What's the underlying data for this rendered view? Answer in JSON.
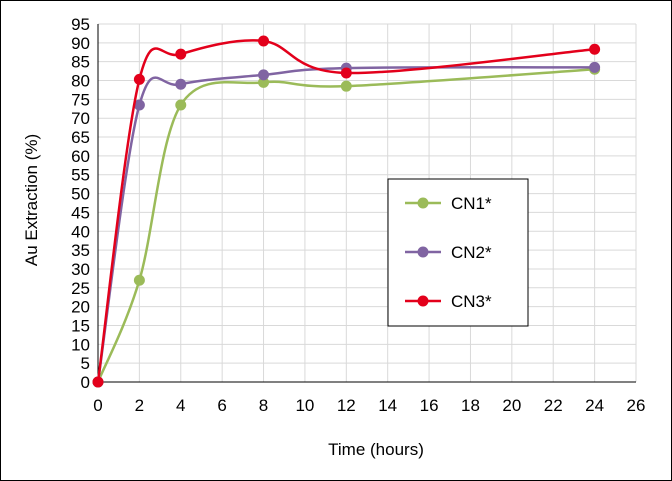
{
  "chart_data": {
    "type": "line",
    "title": "",
    "xlabel": "Time (hours)",
    "ylabel": "Au Extraction (%)",
    "xlim": [
      0,
      26
    ],
    "ylim": [
      0,
      95
    ],
    "x_ticks": [
      0,
      2,
      4,
      6,
      8,
      10,
      12,
      14,
      16,
      18,
      20,
      22,
      24,
      26
    ],
    "y_ticks": [
      0,
      5,
      10,
      15,
      20,
      25,
      30,
      35,
      40,
      45,
      50,
      55,
      60,
      65,
      70,
      75,
      80,
      85,
      90,
      95
    ],
    "grid": true,
    "smooth": true,
    "legend_position": "center-right",
    "x": [
      0,
      2,
      4,
      8,
      12,
      24
    ],
    "series": [
      {
        "name": "CN1*",
        "color": "#9bbb59",
        "values": [
          0,
          27,
          73.5,
          79.5,
          78.5,
          83
        ]
      },
      {
        "name": "CN2*",
        "color": "#8064a2",
        "values": [
          0,
          73.5,
          79,
          81.5,
          83.3,
          83.5
        ]
      },
      {
        "name": "CN3*",
        "color": "#e3001b",
        "values": [
          0,
          80.3,
          87,
          90.5,
          82,
          88.3
        ]
      }
    ]
  }
}
